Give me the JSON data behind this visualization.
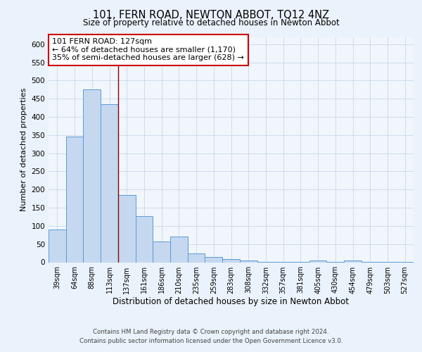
{
  "title": "101, FERN ROAD, NEWTON ABBOT, TQ12 4NZ",
  "subtitle": "Size of property relative to detached houses in Newton Abbot",
  "xlabel": "Distribution of detached houses by size in Newton Abbot",
  "ylabel": "Number of detached properties",
  "categories": [
    "39sqm",
    "64sqm",
    "88sqm",
    "113sqm",
    "137sqm",
    "161sqm",
    "186sqm",
    "210sqm",
    "235sqm",
    "259sqm",
    "283sqm",
    "308sqm",
    "332sqm",
    "357sqm",
    "381sqm",
    "405sqm",
    "430sqm",
    "454sqm",
    "479sqm",
    "503sqm",
    "527sqm"
  ],
  "values": [
    90,
    345,
    475,
    435,
    185,
    127,
    57,
    70,
    24,
    14,
    8,
    4,
    1,
    1,
    1,
    5,
    1,
    5,
    1,
    1,
    1
  ],
  "bar_color": "#c5d8f0",
  "bar_edge_color": "#5b9bd5",
  "bar_width": 1.0,
  "property_line_x": 3.5,
  "property_line_color": "#8b0000",
  "annotation_text": "101 FERN ROAD: 127sqm\n← 64% of detached houses are smaller (1,170)\n35% of semi-detached houses are larger (628) →",
  "annotation_box_color": "white",
  "annotation_box_edge_color": "#cc0000",
  "ylim": [
    0,
    620
  ],
  "yticks": [
    0,
    50,
    100,
    150,
    200,
    250,
    300,
    350,
    400,
    450,
    500,
    550,
    600
  ],
  "footer_line1": "Contains HM Land Registry data © Crown copyright and database right 2024.",
  "footer_line2": "Contains public sector information licensed under the Open Government Licence v3.0.",
  "bg_color": "#eaf2fb",
  "plot_bg_color": "#f0f6fc",
  "grid_color": "#c8d8ea"
}
